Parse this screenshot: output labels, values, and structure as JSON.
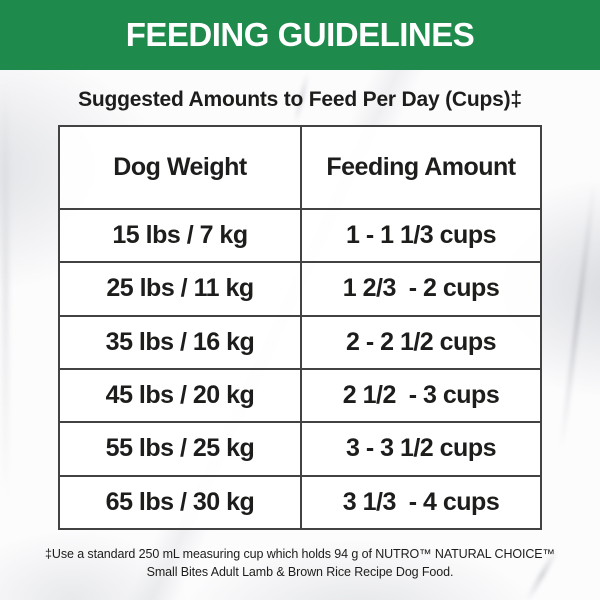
{
  "header": {
    "title": "FEEDING GUIDELINES"
  },
  "subtitle": "Suggested Amounts to Feed Per Day (Cups)‡",
  "table": {
    "columns": [
      "Dog Weight",
      "Feeding Amount"
    ],
    "rows": [
      {
        "weight": "15 lbs / 7 kg",
        "amount": "1 - 1 1/3 cups"
      },
      {
        "weight": "25 lbs / 11 kg",
        "amount": "1 2/3  - 2 cups"
      },
      {
        "weight": "35 lbs / 16 kg",
        "amount": "2 - 2 1/2 cups"
      },
      {
        "weight": "45 lbs / 20 kg",
        "amount": "2 1/2  - 3 cups"
      },
      {
        "weight": "55 lbs / 25 kg",
        "amount": "3 - 3 1/2 cups"
      },
      {
        "weight": "65 lbs / 30 kg",
        "amount": "3 1/3  - 4 cups"
      }
    ]
  },
  "footnote": {
    "line1": "‡Use a standard 250 mL measuring cup which holds 94 g of NUTRO™ NATURAL CHOICE™",
    "line2": "Small Bites Adult Lamb & Brown Rice Recipe Dog Food."
  },
  "colors": {
    "banner_green": "#1E8A4C",
    "banner_text": "#FFFFFF",
    "table_border": "#424242",
    "text": "#1D1D1B",
    "marble_vein": "#9497A0"
  }
}
